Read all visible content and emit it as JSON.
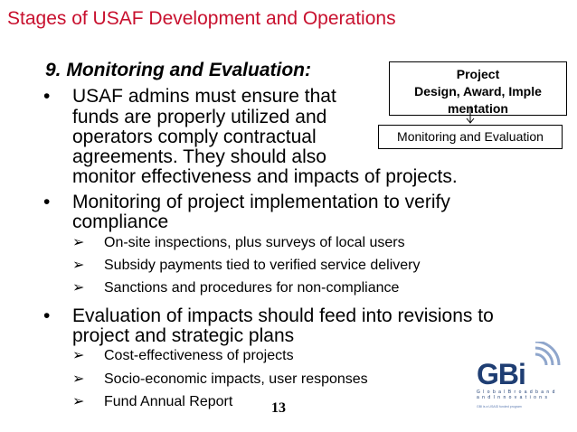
{
  "slide": {
    "title": "Stages of USAF Development and Operations",
    "heading": "9. Monitoring and Evaluation:",
    "bullets": [
      {
        "lines": [
          "USAF admins must ensure that",
          "funds are properly utilized and",
          "operators comply contractual",
          "agreements.  They should also",
          "monitor effectiveness and impacts of projects."
        ]
      },
      {
        "lines": [
          "Monitoring of project implementation to verify",
          "compliance"
        ],
        "subs": [
          "On-site inspections, plus surveys of local users",
          "Subsidy payments tied to verified service delivery",
          "Sanctions and procedures for non-compliance"
        ]
      },
      {
        "lines": [
          "Evaluation of impacts should feed into revisions to",
          "project and strategic plans"
        ],
        "subs": [
          "Cost-effectiveness of projects",
          "Socio-economic impacts, user responses",
          "Fund Annual Report"
        ]
      }
    ],
    "bullet_symbol": "•",
    "sub_symbol": "➢",
    "page_number": "13"
  },
  "diagram": {
    "box1": [
      "Project",
      "Design, Award, Imple",
      "mentation"
    ],
    "box2": "Monitoring and Evaluation"
  },
  "logo": {
    "text": "GBi",
    "tagline_lines": [
      "G l o b a l   B r o a d b a n d",
      "a n d   I n n o v a t i o n s"
    ],
    "note": "GBI is a USAID funded program"
  },
  "colors": {
    "title": "#c8102e",
    "logo": "#1f3e73"
  }
}
